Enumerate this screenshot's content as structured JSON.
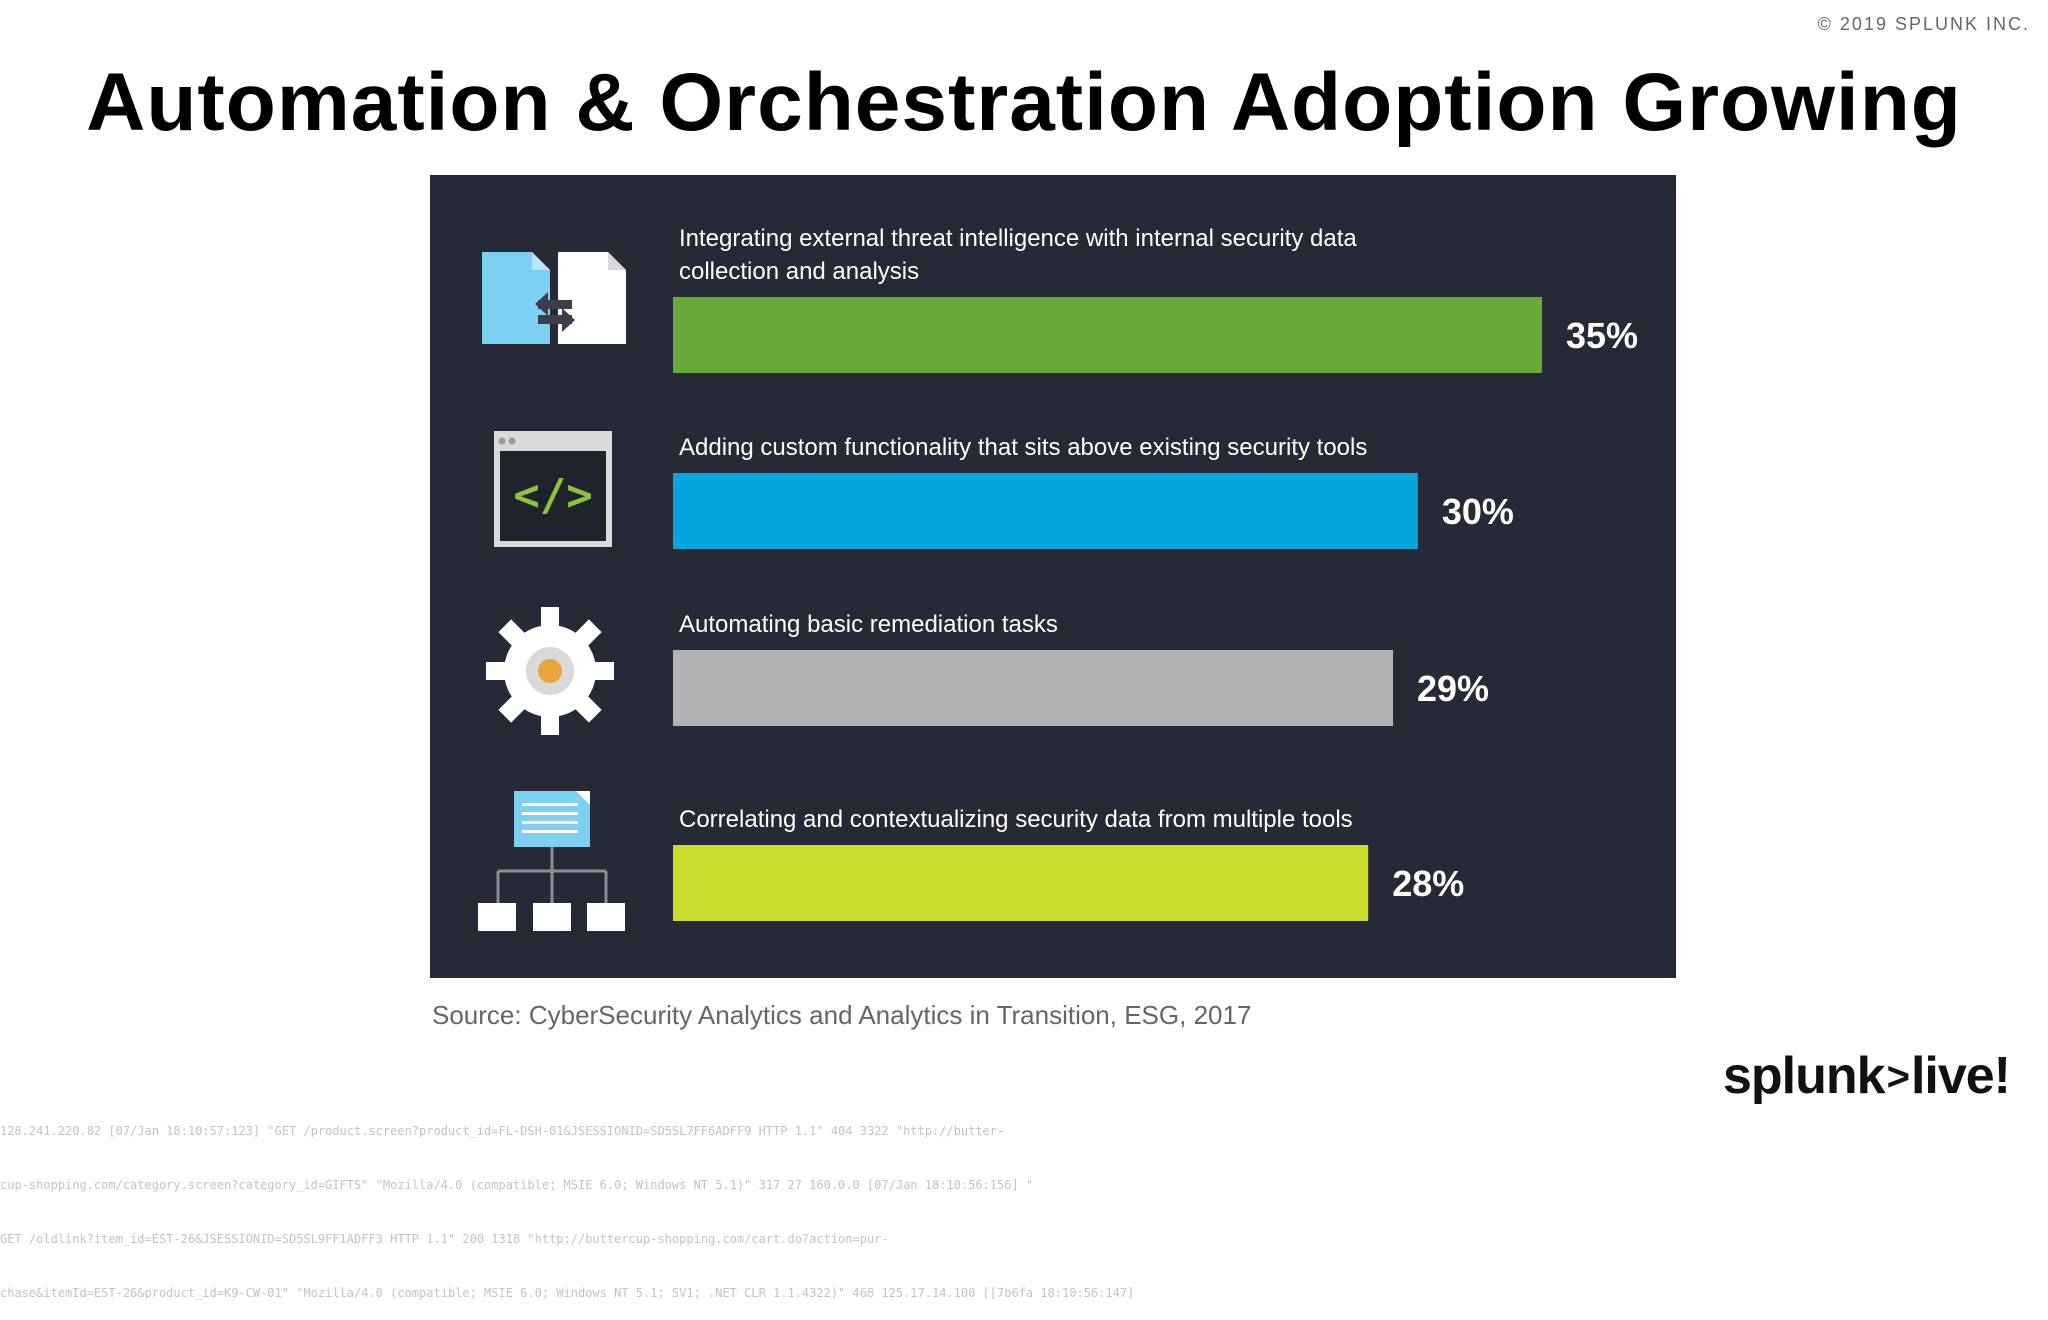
{
  "copyright": "© 2019 SPLUNK INC.",
  "title": "Automation & Orchestration Adoption Growing",
  "source": "Source: CyberSecurity Analytics and Analytics in Transition, ESG, 2017",
  "logo": {
    "left": "splunk",
    "chevron": ">",
    "right": "live!"
  },
  "log_lines": [
    "128.241.220.82 [07/Jan 18:10:57:123] \"GET /product.screen?product_id=FL-DSH-01&JSESSIONID=SD5SL7FF6ADFF9 HTTP 1.1\" 404 3322 \"http://butter-",
    "cup-shopping.com/category.screen?category_id=GIFTS\" \"Mozilla/4.0 (compatible; MSIE 6.0; Windows NT 5.1)\" 317 27 160.0.0 [07/Jan 18:10:56:156] \"",
    "GET /oldlink?item_id=EST-26&JSESSIONID=SD5SL9FF1ADFF3 HTTP 1.1\" 200 1318 \"http://buttercup-shopping.com/cart.do?action=pur-",
    "chase&itemId=EST-26&product_id=K9-CW-01\" \"Mozilla/4.0 (compatible; MSIE 6.0; Windows NT 5.1; SV1; .NET CLR 1.1.4322)\" 468 125.17.14.100 [[7b6fa 18:10:56:147]"
  ],
  "icons": [
    "document-exchange-icon",
    "code-window-icon",
    "gear-icon",
    "hierarchy-icon"
  ],
  "chart_data": {
    "type": "bar",
    "orientation": "horizontal",
    "categories": [
      "Integrating external threat intelligence with internal security data collection and analysis",
      "Adding custom functionality that sits above existing security tools",
      "Automating basic remediation tasks",
      "Correlating and contextualizing security data from multiple tools"
    ],
    "label_lines": [
      [
        "Integrating external threat intelligence with internal security data",
        "collection and analysis"
      ],
      [
        "Adding custom functionality that sits above existing security tools"
      ],
      [
        "Automating basic remediation tasks"
      ],
      [
        "Correlating and contextualizing security data from multiple tools"
      ]
    ],
    "values": [
      35,
      30,
      29,
      28
    ],
    "value_labels": [
      "35%",
      "30%",
      "29%",
      "28%"
    ],
    "colors": [
      "#66a83a",
      "#04a6dd",
      "#b3b3b3",
      "#cbdc2e"
    ],
    "background": "#262a36",
    "xlim": [
      0,
      35
    ],
    "grid": false
  }
}
